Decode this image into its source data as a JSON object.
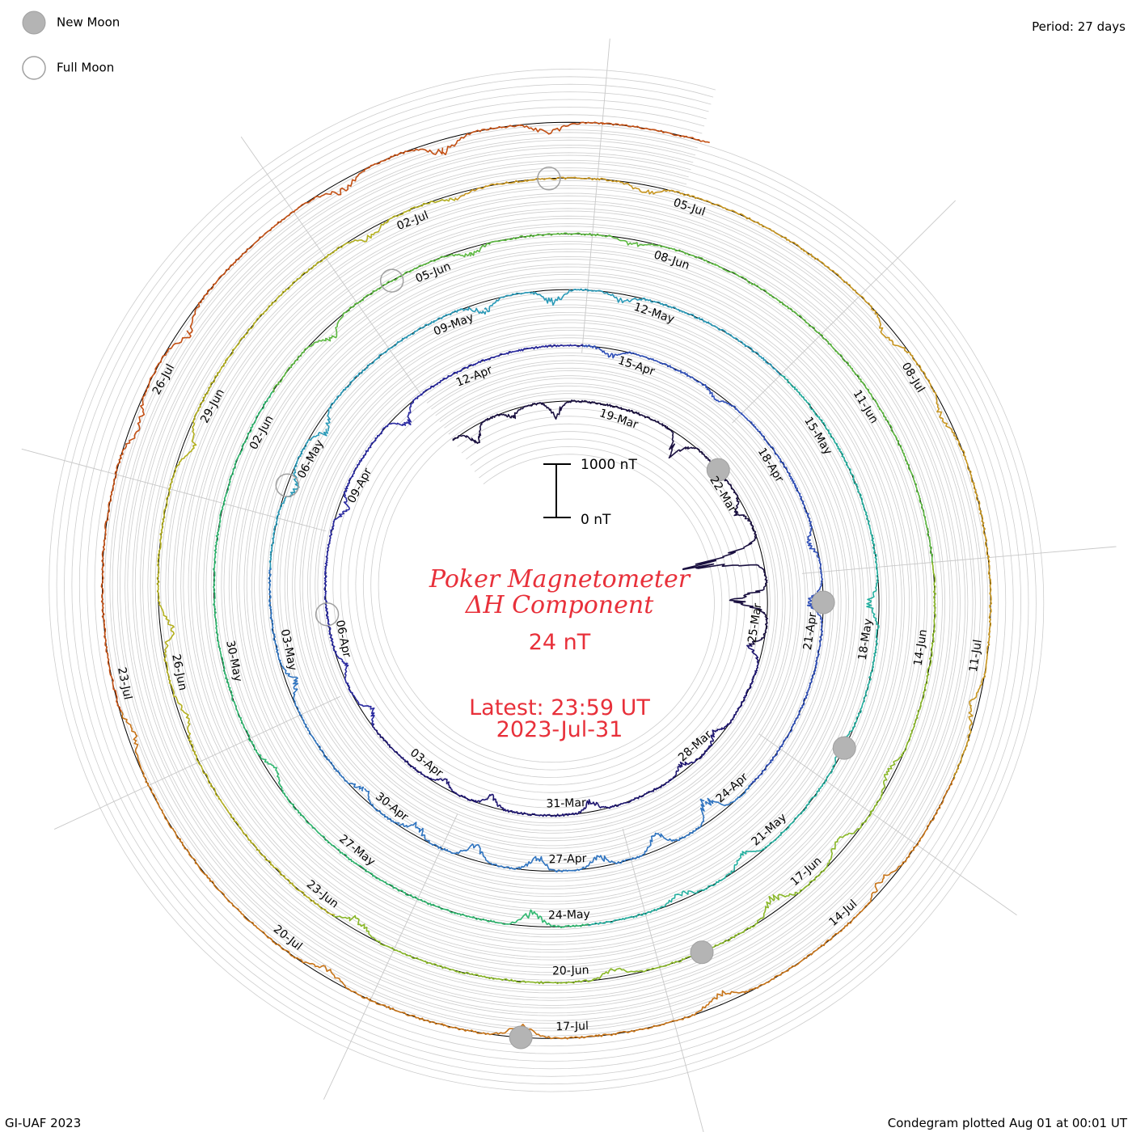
{
  "header": {
    "legend": [
      {
        "label": "New Moon",
        "symbol": "filled-circle"
      },
      {
        "label": "Full Moon",
        "symbol": "open-circle"
      }
    ],
    "period": "Period: 27 days"
  },
  "footer": {
    "left": "GI-UAF 2023",
    "right": "Condegram plotted Aug 01 at 00:01 UT"
  },
  "center": {
    "title_line1": "Poker Magnetometer",
    "title_line2": "ΔH Component",
    "value": "24 nT",
    "latest_line1": "Latest: 23:59 UT",
    "latest_line2": "2023-Jul-31",
    "scale_top": "1000 nT",
    "scale_bottom": "0 nT"
  },
  "colors": {
    "title": "#e8303a",
    "grid": "#c8c8c8",
    "moon_fill": "#b4b4b4",
    "moon_stroke": "#a0a0a0"
  },
  "chart_data": {
    "type": "line",
    "subtype": "spiral-condegram",
    "period_days": 27,
    "start_date": "2023-03-15",
    "end_date": "2023-07-31",
    "units": "nT",
    "scale_bar_nT": [
      0,
      1000
    ],
    "date_labels": [
      {
        "date": "2023-03-19",
        "text": "19-Mar"
      },
      {
        "date": "2023-03-22",
        "text": "22-Mar"
      },
      {
        "date": "2023-03-25",
        "text": "25-Mar"
      },
      {
        "date": "2023-03-28",
        "text": "28-Mar"
      },
      {
        "date": "2023-03-31",
        "text": "31-Mar"
      },
      {
        "date": "2023-04-03",
        "text": "03-Apr"
      },
      {
        "date": "2023-04-06",
        "text": "06-Apr"
      },
      {
        "date": "2023-04-09",
        "text": "09-Apr"
      },
      {
        "date": "2023-04-12",
        "text": "12-Apr"
      },
      {
        "date": "2023-04-15",
        "text": "15-Apr"
      },
      {
        "date": "2023-04-18",
        "text": "18-Apr"
      },
      {
        "date": "2023-04-21",
        "text": "21-Apr"
      },
      {
        "date": "2023-04-24",
        "text": "24-Apr"
      },
      {
        "date": "2023-04-27",
        "text": "27-Apr"
      },
      {
        "date": "2023-04-30",
        "text": "30-Apr"
      },
      {
        "date": "2023-05-03",
        "text": "03-May"
      },
      {
        "date": "2023-05-06",
        "text": "06-May"
      },
      {
        "date": "2023-05-09",
        "text": "09-May"
      },
      {
        "date": "2023-05-12",
        "text": "12-May"
      },
      {
        "date": "2023-05-15",
        "text": "15-May"
      },
      {
        "date": "2023-05-18",
        "text": "18-May"
      },
      {
        "date": "2023-05-21",
        "text": "21-May"
      },
      {
        "date": "2023-05-24",
        "text": "24-May"
      },
      {
        "date": "2023-05-27",
        "text": "27-May"
      },
      {
        "date": "2023-05-30",
        "text": "30-May"
      },
      {
        "date": "2023-06-02",
        "text": "02-Jun"
      },
      {
        "date": "2023-06-05",
        "text": "05-Jun"
      },
      {
        "date": "2023-06-08",
        "text": "08-Jun"
      },
      {
        "date": "2023-06-11",
        "text": "11-Jun"
      },
      {
        "date": "2023-06-14",
        "text": "14-Jun"
      },
      {
        "date": "2023-06-17",
        "text": "17-Jun"
      },
      {
        "date": "2023-06-20",
        "text": "20-Jun"
      },
      {
        "date": "2023-06-23",
        "text": "23-Jun"
      },
      {
        "date": "2023-06-26",
        "text": "26-Jun"
      },
      {
        "date": "2023-06-29",
        "text": "29-Jun"
      },
      {
        "date": "2023-07-02",
        "text": "02-Jul"
      },
      {
        "date": "2023-07-05",
        "text": "05-Jul"
      },
      {
        "date": "2023-07-08",
        "text": "08-Jul"
      },
      {
        "date": "2023-07-11",
        "text": "11-Jul"
      },
      {
        "date": "2023-07-14",
        "text": "14-Jul"
      },
      {
        "date": "2023-07-17",
        "text": "17-Jul"
      },
      {
        "date": "2023-07-20",
        "text": "20-Jul"
      },
      {
        "date": "2023-07-23",
        "text": "23-Jul"
      },
      {
        "date": "2023-07-26",
        "text": "26-Jul"
      }
    ],
    "new_moons": [
      "2023-03-21",
      "2023-04-20",
      "2023-05-19",
      "2023-06-18",
      "2023-07-17"
    ],
    "full_moons": [
      "2023-04-06",
      "2023-05-05",
      "2023-06-04",
      "2023-07-03"
    ],
    "disturbances_nT": [
      {
        "date": "2023-03-15",
        "peak": -300
      },
      {
        "date": "2023-03-16",
        "peak": -150
      },
      {
        "date": "2023-03-17",
        "peak": -300
      },
      {
        "date": "2023-03-20",
        "peak": -400
      },
      {
        "date": "2023-03-21",
        "peak": -150
      },
      {
        "date": "2023-03-22",
        "peak": -200
      },
      {
        "date": "2023-03-23",
        "peak": -1300
      },
      {
        "date": "2023-03-24",
        "peak": -700
      },
      {
        "date": "2023-03-25",
        "peak": -250
      },
      {
        "date": "2023-03-27",
        "peak": -150
      },
      {
        "date": "2023-03-28",
        "peak": -150
      },
      {
        "date": "2023-03-30",
        "peak": -200
      },
      {
        "date": "2023-04-01",
        "peak": -200
      },
      {
        "date": "2023-04-02",
        "peak": -150
      },
      {
        "date": "2023-04-04",
        "peak": -200
      },
      {
        "date": "2023-04-05",
        "peak": -150
      },
      {
        "date": "2023-04-08",
        "peak": -180
      },
      {
        "date": "2023-04-10",
        "peak": -300
      },
      {
        "date": "2023-04-14",
        "peak": -150
      },
      {
        "date": "2023-04-16",
        "peak": -100
      },
      {
        "date": "2023-04-19",
        "peak": -150
      },
      {
        "date": "2023-04-20",
        "peak": -300
      },
      {
        "date": "2023-04-24",
        "peak": -400
      },
      {
        "date": "2023-04-25",
        "peak": -300
      },
      {
        "date": "2023-04-26",
        "peak": -200
      },
      {
        "date": "2023-04-27",
        "peak": -250
      },
      {
        "date": "2023-04-28",
        "peak": -300
      },
      {
        "date": "2023-04-29",
        "peak": -200
      },
      {
        "date": "2023-04-30",
        "peak": -150
      },
      {
        "date": "2023-05-02",
        "peak": -200
      },
      {
        "date": "2023-05-05",
        "peak": -200
      },
      {
        "date": "2023-05-06",
        "peak": -250
      },
      {
        "date": "2023-05-09",
        "peak": -200
      },
      {
        "date": "2023-05-10",
        "peak": -250
      },
      {
        "date": "2023-05-11",
        "peak": -150
      },
      {
        "date": "2023-05-17",
        "peak": -200
      },
      {
        "date": "2023-05-19",
        "peak": -150
      },
      {
        "date": "2023-05-21",
        "peak": -200
      },
      {
        "date": "2023-05-22",
        "peak": -150
      },
      {
        "date": "2023-05-24",
        "peak": -250
      },
      {
        "date": "2023-05-28",
        "peak": -150
      },
      {
        "date": "2023-06-03",
        "peak": -200
      },
      {
        "date": "2023-06-05",
        "peak": -150
      },
      {
        "date": "2023-06-07",
        "peak": -100
      },
      {
        "date": "2023-06-15",
        "peak": -150
      },
      {
        "date": "2023-06-16",
        "peak": -200
      },
      {
        "date": "2023-06-17",
        "peak": -250
      },
      {
        "date": "2023-06-19",
        "peak": -150
      },
      {
        "date": "2023-06-22",
        "peak": -200
      },
      {
        "date": "2023-06-25",
        "peak": -150
      },
      {
        "date": "2023-06-26",
        "peak": -250
      },
      {
        "date": "2023-06-28",
        "peak": -200
      },
      {
        "date": "2023-07-01",
        "peak": -150
      },
      {
        "date": "2023-07-02",
        "peak": -100
      },
      {
        "date": "2023-07-04",
        "peak": -150
      },
      {
        "date": "2023-07-07",
        "peak": -200
      },
      {
        "date": "2023-07-08",
        "peak": -150
      },
      {
        "date": "2023-07-11",
        "peak": -150
      },
      {
        "date": "2023-07-13",
        "peak": -150
      },
      {
        "date": "2023-07-15",
        "peak": -200
      },
      {
        "date": "2023-07-17",
        "peak": -200
      },
      {
        "date": "2023-07-19",
        "peak": -150
      },
      {
        "date": "2023-07-22",
        "peak": -150
      },
      {
        "date": "2023-07-25",
        "peak": -200
      },
      {
        "date": "2023-07-26",
        "peak": -200
      },
      {
        "date": "2023-07-28",
        "peak": -200
      },
      {
        "date": "2023-07-29",
        "peak": -250
      },
      {
        "date": "2023-07-30",
        "peak": -200
      }
    ]
  }
}
